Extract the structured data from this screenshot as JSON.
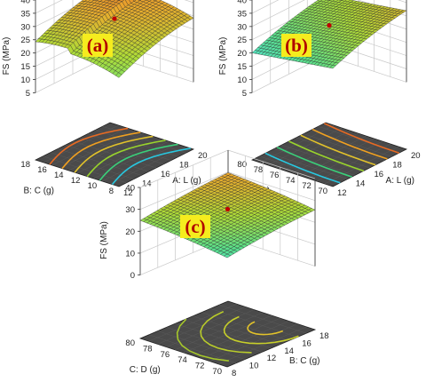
{
  "chart_data": [
    {
      "type": "surface3d",
      "panel_label": "(a)",
      "x": {
        "label": "A: L (g)",
        "ticks": [
          "12",
          "14",
          "16",
          "18",
          "20"
        ],
        "range": [
          12,
          20
        ]
      },
      "y": {
        "label": "B: C (g)",
        "ticks": [
          "8",
          "10",
          "12",
          "14",
          "16",
          "18"
        ],
        "range": [
          8,
          18
        ]
      },
      "z": {
        "label": "FS (MPa)",
        "ticks": [
          "5",
          "10",
          "15",
          "20",
          "25",
          "30",
          "35",
          "40"
        ],
        "range": [
          5,
          40
        ]
      },
      "design_point": {
        "z": 29
      }
    },
    {
      "type": "surface3d",
      "panel_label": "(b)",
      "x": {
        "label": "A: L (g)",
        "ticks": [
          "12",
          "14",
          "16",
          "18",
          "20"
        ],
        "range": [
          12,
          20
        ]
      },
      "y": {
        "label": "C: D (g)",
        "ticks": [
          "70",
          "72",
          "74",
          "76",
          "78",
          "80"
        ],
        "range": [
          70,
          80
        ]
      },
      "z": {
        "label": "FS (MPa)",
        "ticks": [
          "5",
          "10",
          "15",
          "20",
          "25",
          "30",
          "35",
          "40"
        ],
        "range": [
          5,
          40
        ]
      },
      "design_point": {
        "z": 30
      }
    },
    {
      "type": "surface3d",
      "panel_label": "(c)",
      "x": {
        "label": "B: C (g)",
        "ticks": [
          "8",
          "10",
          "12",
          "14",
          "16",
          "18"
        ],
        "range": [
          8,
          18
        ]
      },
      "y": {
        "label": "C: D (g)",
        "ticks": [
          "70",
          "72",
          "74",
          "76",
          "78",
          "80"
        ],
        "range": [
          70,
          80
        ]
      },
      "z": {
        "label": "FS (MPa)",
        "ticks": [
          "0",
          "10",
          "20",
          "30",
          "40"
        ],
        "range": [
          0,
          40
        ]
      },
      "design_point": {
        "z": 28
      }
    }
  ]
}
